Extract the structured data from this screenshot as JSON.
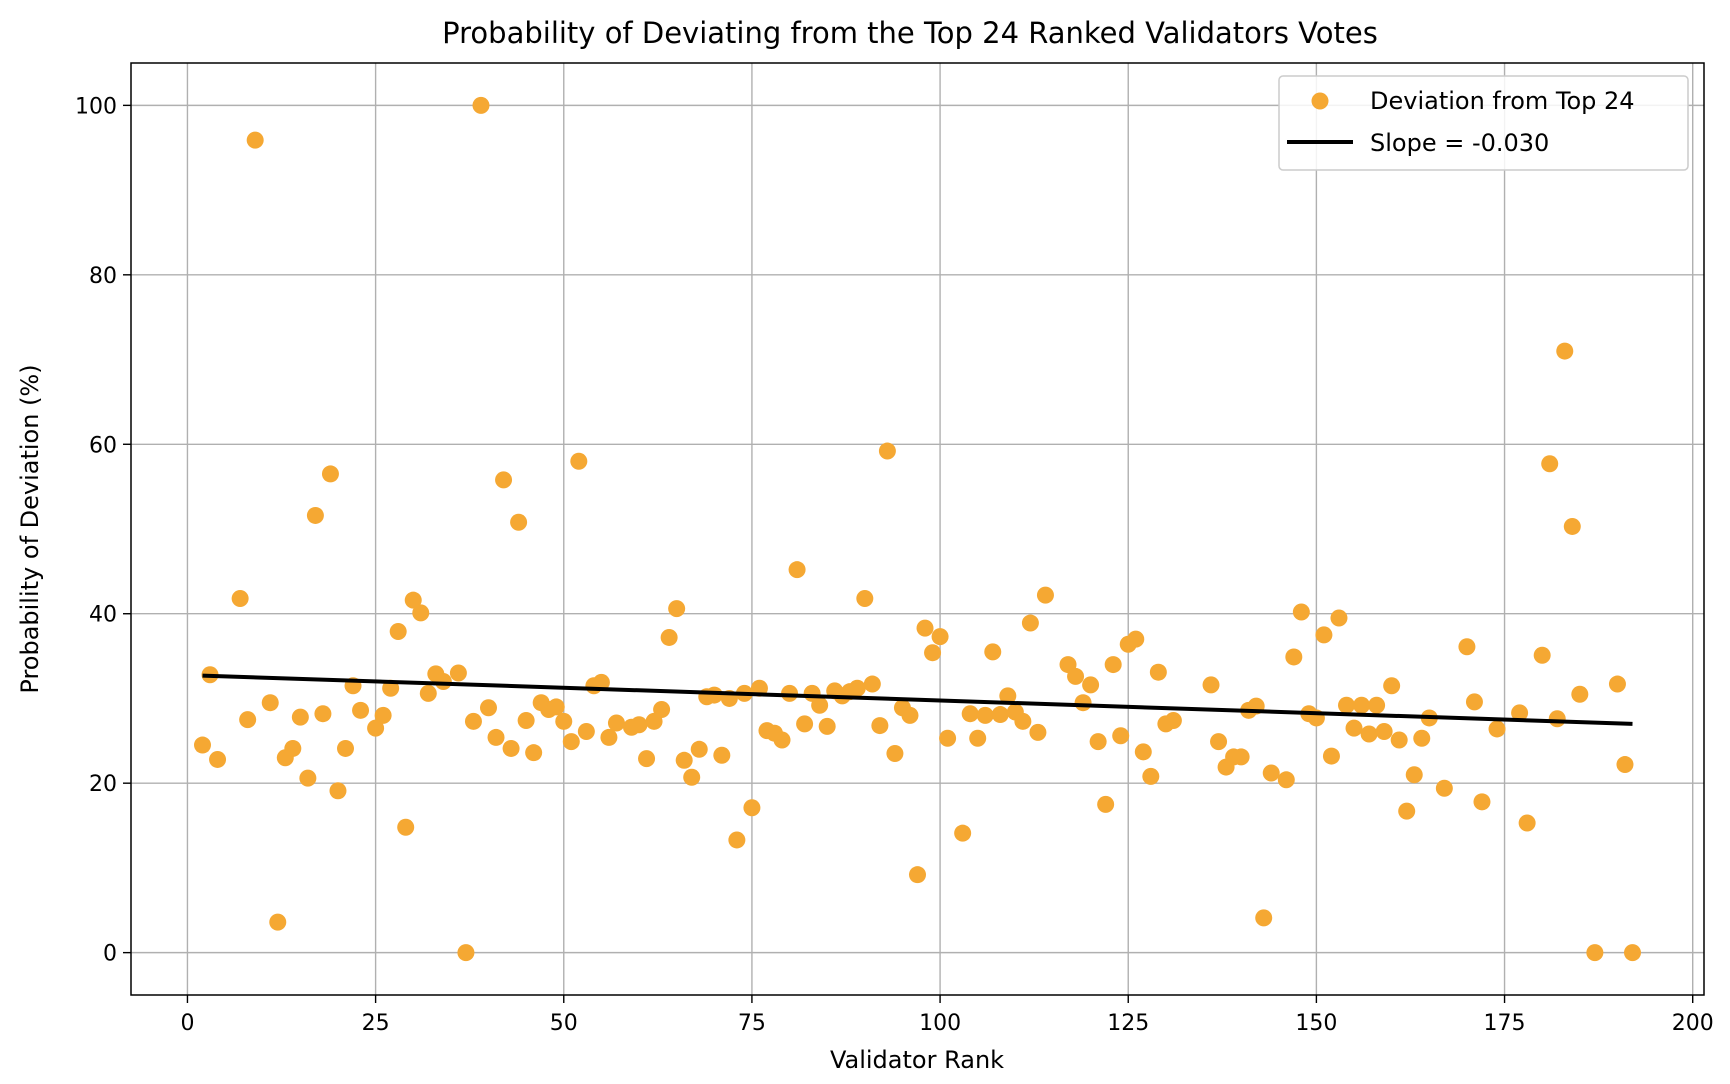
{
  "chart_data": {
    "type": "scatter",
    "title": "Probability of Deviating from the Top 24 Ranked Validators Votes",
    "xlabel": "Validator Rank",
    "ylabel": "Probability of Deviation (%)",
    "xlim": [
      -7.5,
      201.5
    ],
    "ylim": [
      -5,
      105
    ],
    "xticks": [
      0,
      25,
      50,
      75,
      100,
      125,
      150,
      175,
      200
    ],
    "yticks": [
      0,
      20,
      40,
      60,
      80,
      100
    ],
    "grid": true,
    "legend_position": "top-right",
    "series": [
      {
        "name": "Deviation from Top 24",
        "kind": "scatter",
        "color": "#f5a833",
        "points": [
          [
            2,
            24.5
          ],
          [
            3,
            32.8
          ],
          [
            4,
            22.8
          ],
          [
            7,
            41.8
          ],
          [
            8,
            27.5
          ],
          [
            9,
            95.9
          ],
          [
            11,
            29.5
          ],
          [
            12,
            3.6
          ],
          [
            13,
            23.0
          ],
          [
            14,
            24.1
          ],
          [
            15,
            27.8
          ],
          [
            16,
            20.6
          ],
          [
            17,
            51.6
          ],
          [
            18,
            28.2
          ],
          [
            19,
            56.5
          ],
          [
            20,
            19.1
          ],
          [
            21,
            24.1
          ],
          [
            22,
            31.5
          ],
          [
            23,
            28.6
          ],
          [
            25,
            26.5
          ],
          [
            26,
            28.0
          ],
          [
            27,
            31.2
          ],
          [
            28,
            37.9
          ],
          [
            29,
            14.8
          ],
          [
            30,
            41.6
          ],
          [
            31,
            40.1
          ],
          [
            32,
            30.6
          ],
          [
            33,
            32.9
          ],
          [
            34,
            32.0
          ],
          [
            36,
            33.0
          ],
          [
            37,
            0.0
          ],
          [
            38,
            27.3
          ],
          [
            39,
            100.0
          ],
          [
            40,
            28.9
          ],
          [
            41,
            25.4
          ],
          [
            42,
            55.8
          ],
          [
            43,
            24.1
          ],
          [
            44,
            50.8
          ],
          [
            45,
            27.4
          ],
          [
            46,
            23.6
          ],
          [
            47,
            29.5
          ],
          [
            48,
            28.7
          ],
          [
            49,
            29.0
          ],
          [
            50,
            27.3
          ],
          [
            51,
            24.9
          ],
          [
            52,
            58.0
          ],
          [
            53,
            26.1
          ],
          [
            54,
            31.5
          ],
          [
            55,
            31.9
          ],
          [
            56,
            25.4
          ],
          [
            57,
            27.1
          ],
          [
            59,
            26.6
          ],
          [
            60,
            26.9
          ],
          [
            61,
            22.9
          ],
          [
            62,
            27.3
          ],
          [
            63,
            28.7
          ],
          [
            64,
            37.2
          ],
          [
            65,
            40.6
          ],
          [
            66,
            22.7
          ],
          [
            67,
            20.7
          ],
          [
            68,
            24.0
          ],
          [
            69,
            30.2
          ],
          [
            70,
            30.4
          ],
          [
            71,
            23.3
          ],
          [
            72,
            30.0
          ],
          [
            73,
            13.3
          ],
          [
            74,
            30.6
          ],
          [
            75,
            17.1
          ],
          [
            76,
            31.2
          ],
          [
            77,
            26.2
          ],
          [
            78,
            25.9
          ],
          [
            79,
            25.1
          ],
          [
            80,
            30.6
          ],
          [
            81,
            45.2
          ],
          [
            82,
            27.0
          ],
          [
            83,
            30.6
          ],
          [
            84,
            29.2
          ],
          [
            85,
            26.7
          ],
          [
            86,
            30.9
          ],
          [
            87,
            30.3
          ],
          [
            88,
            30.8
          ],
          [
            89,
            31.2
          ],
          [
            90,
            41.8
          ],
          [
            91,
            31.7
          ],
          [
            92,
            26.8
          ],
          [
            93,
            59.2
          ],
          [
            94,
            23.5
          ],
          [
            95,
            28.9
          ],
          [
            96,
            28.0
          ],
          [
            97,
            9.2
          ],
          [
            98,
            38.3
          ],
          [
            99,
            35.4
          ],
          [
            100,
            37.3
          ],
          [
            101,
            25.3
          ],
          [
            103,
            14.1
          ],
          [
            104,
            28.2
          ],
          [
            105,
            25.3
          ],
          [
            106,
            28.0
          ],
          [
            107,
            35.5
          ],
          [
            108,
            28.1
          ],
          [
            109,
            30.3
          ],
          [
            110,
            28.4
          ],
          [
            111,
            27.3
          ],
          [
            112,
            38.9
          ],
          [
            113,
            26.0
          ],
          [
            114,
            42.2
          ],
          [
            117,
            34.0
          ],
          [
            118,
            32.6
          ],
          [
            119,
            29.5
          ],
          [
            120,
            31.6
          ],
          [
            121,
            24.9
          ],
          [
            122,
            17.5
          ],
          [
            123,
            34.0
          ],
          [
            124,
            25.6
          ],
          [
            125,
            36.4
          ],
          [
            126,
            37.0
          ],
          [
            127,
            23.7
          ],
          [
            128,
            20.8
          ],
          [
            129,
            33.1
          ],
          [
            130,
            27.0
          ],
          [
            131,
            27.4
          ],
          [
            136,
            31.6
          ],
          [
            137,
            24.9
          ],
          [
            138,
            21.9
          ],
          [
            139,
            23.1
          ],
          [
            140,
            23.1
          ],
          [
            141,
            28.6
          ],
          [
            142,
            29.1
          ],
          [
            143,
            4.1
          ],
          [
            144,
            21.2
          ],
          [
            146,
            20.4
          ],
          [
            147,
            34.9
          ],
          [
            148,
            40.2
          ],
          [
            149,
            28.2
          ],
          [
            150,
            27.7
          ],
          [
            151,
            37.5
          ],
          [
            152,
            23.2
          ],
          [
            153,
            39.5
          ],
          [
            154,
            29.2
          ],
          [
            155,
            26.5
          ],
          [
            156,
            29.2
          ],
          [
            157,
            25.8
          ],
          [
            158,
            29.2
          ],
          [
            159,
            26.1
          ],
          [
            160,
            31.5
          ],
          [
            161,
            25.1
          ],
          [
            162,
            16.7
          ],
          [
            163,
            21.0
          ],
          [
            164,
            25.3
          ],
          [
            165,
            27.7
          ],
          [
            167,
            19.4
          ],
          [
            170,
            36.1
          ],
          [
            171,
            29.6
          ],
          [
            172,
            17.8
          ],
          [
            174,
            26.4
          ],
          [
            177,
            28.3
          ],
          [
            178,
            15.3
          ],
          [
            180,
            35.1
          ],
          [
            181,
            57.7
          ],
          [
            182,
            27.6
          ],
          [
            183,
            71.0
          ],
          [
            184,
            50.3
          ],
          [
            185,
            30.5
          ],
          [
            187,
            0.0
          ],
          [
            190,
            31.7
          ],
          [
            191,
            22.2
          ],
          [
            192,
            0.0
          ]
        ]
      },
      {
        "name": "Slope = -0.030",
        "kind": "line",
        "color": "#000000",
        "points": [
          [
            2,
            32.7
          ],
          [
            192,
            27.0
          ]
        ]
      }
    ]
  }
}
